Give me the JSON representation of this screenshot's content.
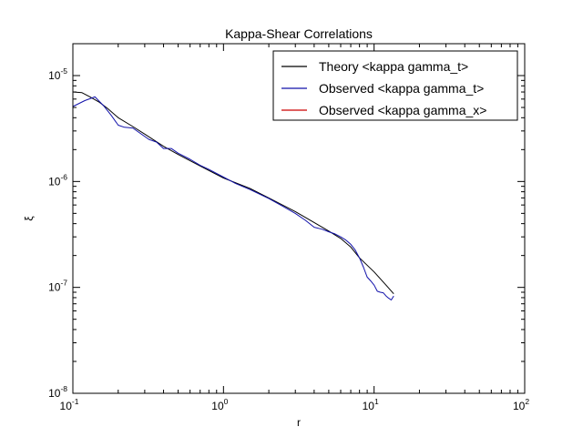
{
  "chart_data": {
    "type": "line",
    "title": "Kappa-Shear Correlations",
    "xlabel": "r",
    "ylabel": "ξ",
    "xscale": "log",
    "yscale": "log",
    "xlim": [
      0.1,
      100
    ],
    "ylim": [
      1e-08,
      2e-05
    ],
    "x_ticks": [
      {
        "base": "10",
        "exp": "-1",
        "value": 0.1
      },
      {
        "base": "10",
        "exp": "0",
        "value": 1
      },
      {
        "base": "10",
        "exp": "1",
        "value": 10
      },
      {
        "base": "10",
        "exp": "2",
        "value": 100
      }
    ],
    "y_ticks": [
      {
        "base": "10",
        "exp": "-8",
        "value": 1e-08
      },
      {
        "base": "10",
        "exp": "-7",
        "value": 1e-07
      },
      {
        "base": "10",
        "exp": "-6",
        "value": 1e-06
      },
      {
        "base": "10",
        "exp": "-5",
        "value": 1e-05
      }
    ],
    "grid": false,
    "legend_position": "top-right",
    "series": [
      {
        "name": "Theory <kappa gamma_t>",
        "color": "#000000",
        "x": [
          0.1,
          0.115,
          0.13,
          0.15,
          0.17,
          0.2,
          0.25,
          0.3,
          0.4,
          0.5,
          0.7,
          1.0,
          1.5,
          2.0,
          3.0,
          4.0,
          5.0,
          6.0,
          7.0,
          8.0,
          10.0,
          12.0,
          13.5
        ],
        "y": [
          7e-06,
          6.9e-06,
          6.3e-06,
          5.6e-06,
          4.9e-06,
          4e-06,
          3.3e-06,
          2.8e-06,
          2.15e-06,
          1.8e-06,
          1.4e-06,
          1.08e-06,
          8.6e-07,
          7e-07,
          5.2e-07,
          4.1e-07,
          3.4e-07,
          2.9e-07,
          2.4e-07,
          1.9e-07,
          1.4e-07,
          1.05e-07,
          8.7e-08
        ]
      },
      {
        "name": "Observed <kappa gamma_t>",
        "color": "#1111aa",
        "x": [
          0.1,
          0.12,
          0.14,
          0.16,
          0.18,
          0.2,
          0.22,
          0.25,
          0.28,
          0.32,
          0.36,
          0.4,
          0.45,
          0.5,
          0.6,
          0.7,
          0.8,
          1.0,
          1.2,
          1.5,
          2.0,
          2.5,
          3.0,
          3.5,
          4.0,
          4.5,
          5.0,
          5.5,
          6.0,
          6.5,
          7.0,
          7.5,
          8.0,
          8.5,
          9.0,
          9.5,
          10.0,
          10.5,
          11.0,
          11.5,
          12.0,
          12.5,
          13.0,
          13.5
        ],
        "y": [
          5.1e-06,
          5.8e-06,
          6.3e-06,
          5.2e-06,
          4.2e-06,
          3.4e-06,
          3.25e-06,
          3.2e-06,
          2.85e-06,
          2.5e-06,
          2.35e-06,
          2.05e-06,
          2.05e-06,
          1.85e-06,
          1.62e-06,
          1.42e-06,
          1.3e-06,
          1.1e-06,
          9.6e-07,
          8.4e-07,
          6.9e-07,
          5.8e-07,
          5e-07,
          4.3e-07,
          3.7e-07,
          3.55e-07,
          3.35e-07,
          3.2e-07,
          3e-07,
          2.8e-07,
          2.55e-07,
          2.25e-07,
          1.9e-07,
          1.55e-07,
          1.25e-07,
          1.15e-07,
          1.05e-07,
          9.2e-08,
          9e-08,
          8.9e-08,
          8.3e-08,
          7.9e-08,
          7.6e-08,
          8.3e-08
        ]
      },
      {
        "name": "Observed <kappa gamma_x>",
        "color": "#cc0000",
        "x": [],
        "y": []
      }
    ]
  }
}
